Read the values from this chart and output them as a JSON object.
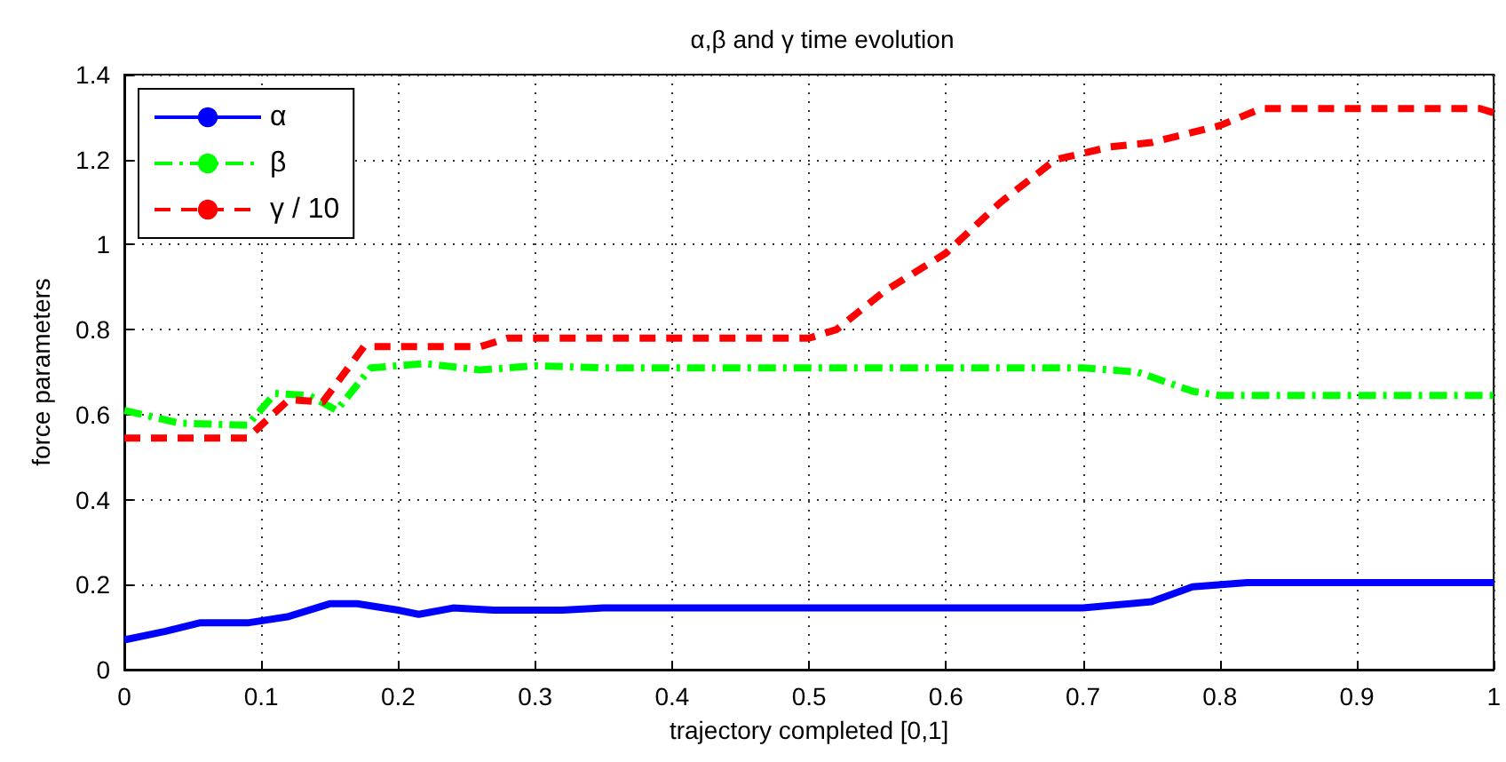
{
  "chart_data": {
    "type": "line",
    "title": "α,β and γ time evolution",
    "xlabel": "trajectory completed [0,1]",
    "ylabel": "force parameters",
    "xlim": [
      0,
      1
    ],
    "xticks": [
      0,
      0.1,
      0.2,
      0.3,
      0.4,
      0.5,
      0.6,
      0.7,
      0.8,
      0.9,
      1
    ],
    "ylim": [
      0,
      1.4
    ],
    "yticks": [
      0,
      0.2,
      0.4,
      0.6,
      0.8,
      1,
      1.2,
      1.4
    ],
    "grid": true,
    "legend": "top left",
    "marker": "none",
    "series": [
      {
        "name": "α",
        "color": "#0000ff",
        "line_style": "solid",
        "x": [
          0,
          0.03,
          0.055,
          0.09,
          0.12,
          0.15,
          0.17,
          0.2,
          0.215,
          0.24,
          0.27,
          0.32,
          0.35,
          0.7,
          0.75,
          0.78,
          0.82,
          1
        ],
        "values": [
          0.07,
          0.09,
          0.11,
          0.11,
          0.125,
          0.155,
          0.155,
          0.14,
          0.13,
          0.145,
          0.14,
          0.14,
          0.145,
          0.145,
          0.16,
          0.195,
          0.205,
          0.205
        ]
      },
      {
        "name": "β",
        "color": "#00ff00",
        "line_style": "dashdot",
        "x": [
          0,
          0.04,
          0.09,
          0.11,
          0.135,
          0.155,
          0.18,
          0.22,
          0.26,
          0.3,
          0.35,
          0.7,
          0.74,
          0.78,
          0.8,
          1
        ],
        "values": [
          0.61,
          0.58,
          0.575,
          0.65,
          0.645,
          0.61,
          0.71,
          0.72,
          0.705,
          0.715,
          0.71,
          0.71,
          0.7,
          0.655,
          0.645,
          0.645
        ]
      },
      {
        "name": "γ / 10",
        "color": "#ff0000",
        "line_style": "dashed",
        "x": [
          0,
          0.09,
          0.11,
          0.12,
          0.145,
          0.175,
          0.26,
          0.28,
          0.5,
          0.52,
          0.555,
          0.6,
          0.64,
          0.68,
          0.72,
          0.75,
          0.8,
          0.83,
          0.99,
          1
        ],
        "values": [
          0.545,
          0.545,
          0.605,
          0.635,
          0.63,
          0.76,
          0.76,
          0.78,
          0.78,
          0.8,
          0.89,
          0.98,
          1.1,
          1.2,
          1.23,
          1.24,
          1.28,
          1.32,
          1.32,
          1.31
        ]
      }
    ]
  }
}
